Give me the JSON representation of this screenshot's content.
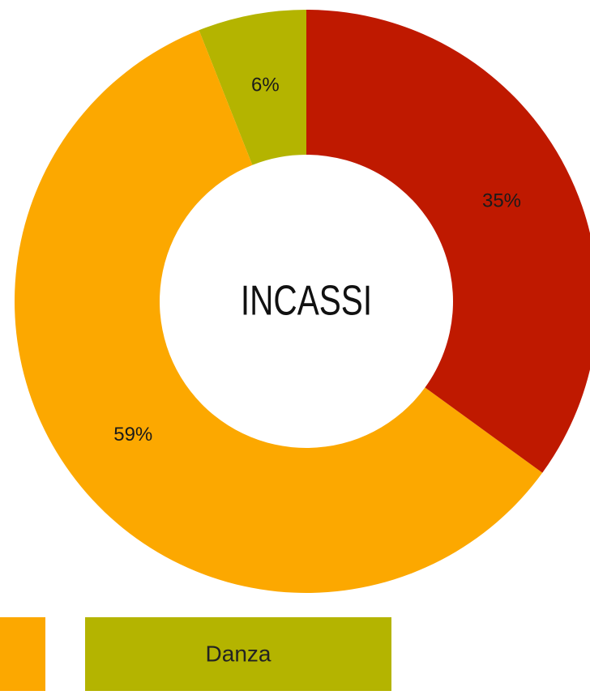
{
  "chart_data": {
    "type": "pie",
    "title": "INCASSI",
    "categories": [
      null,
      null,
      "Danza"
    ],
    "values": [
      35,
      59,
      6
    ],
    "value_labels": [
      "35%",
      "59%",
      "6%"
    ],
    "colors": [
      "#bf1900",
      "#fca800",
      "#b4b400"
    ],
    "donut": true
  }
}
